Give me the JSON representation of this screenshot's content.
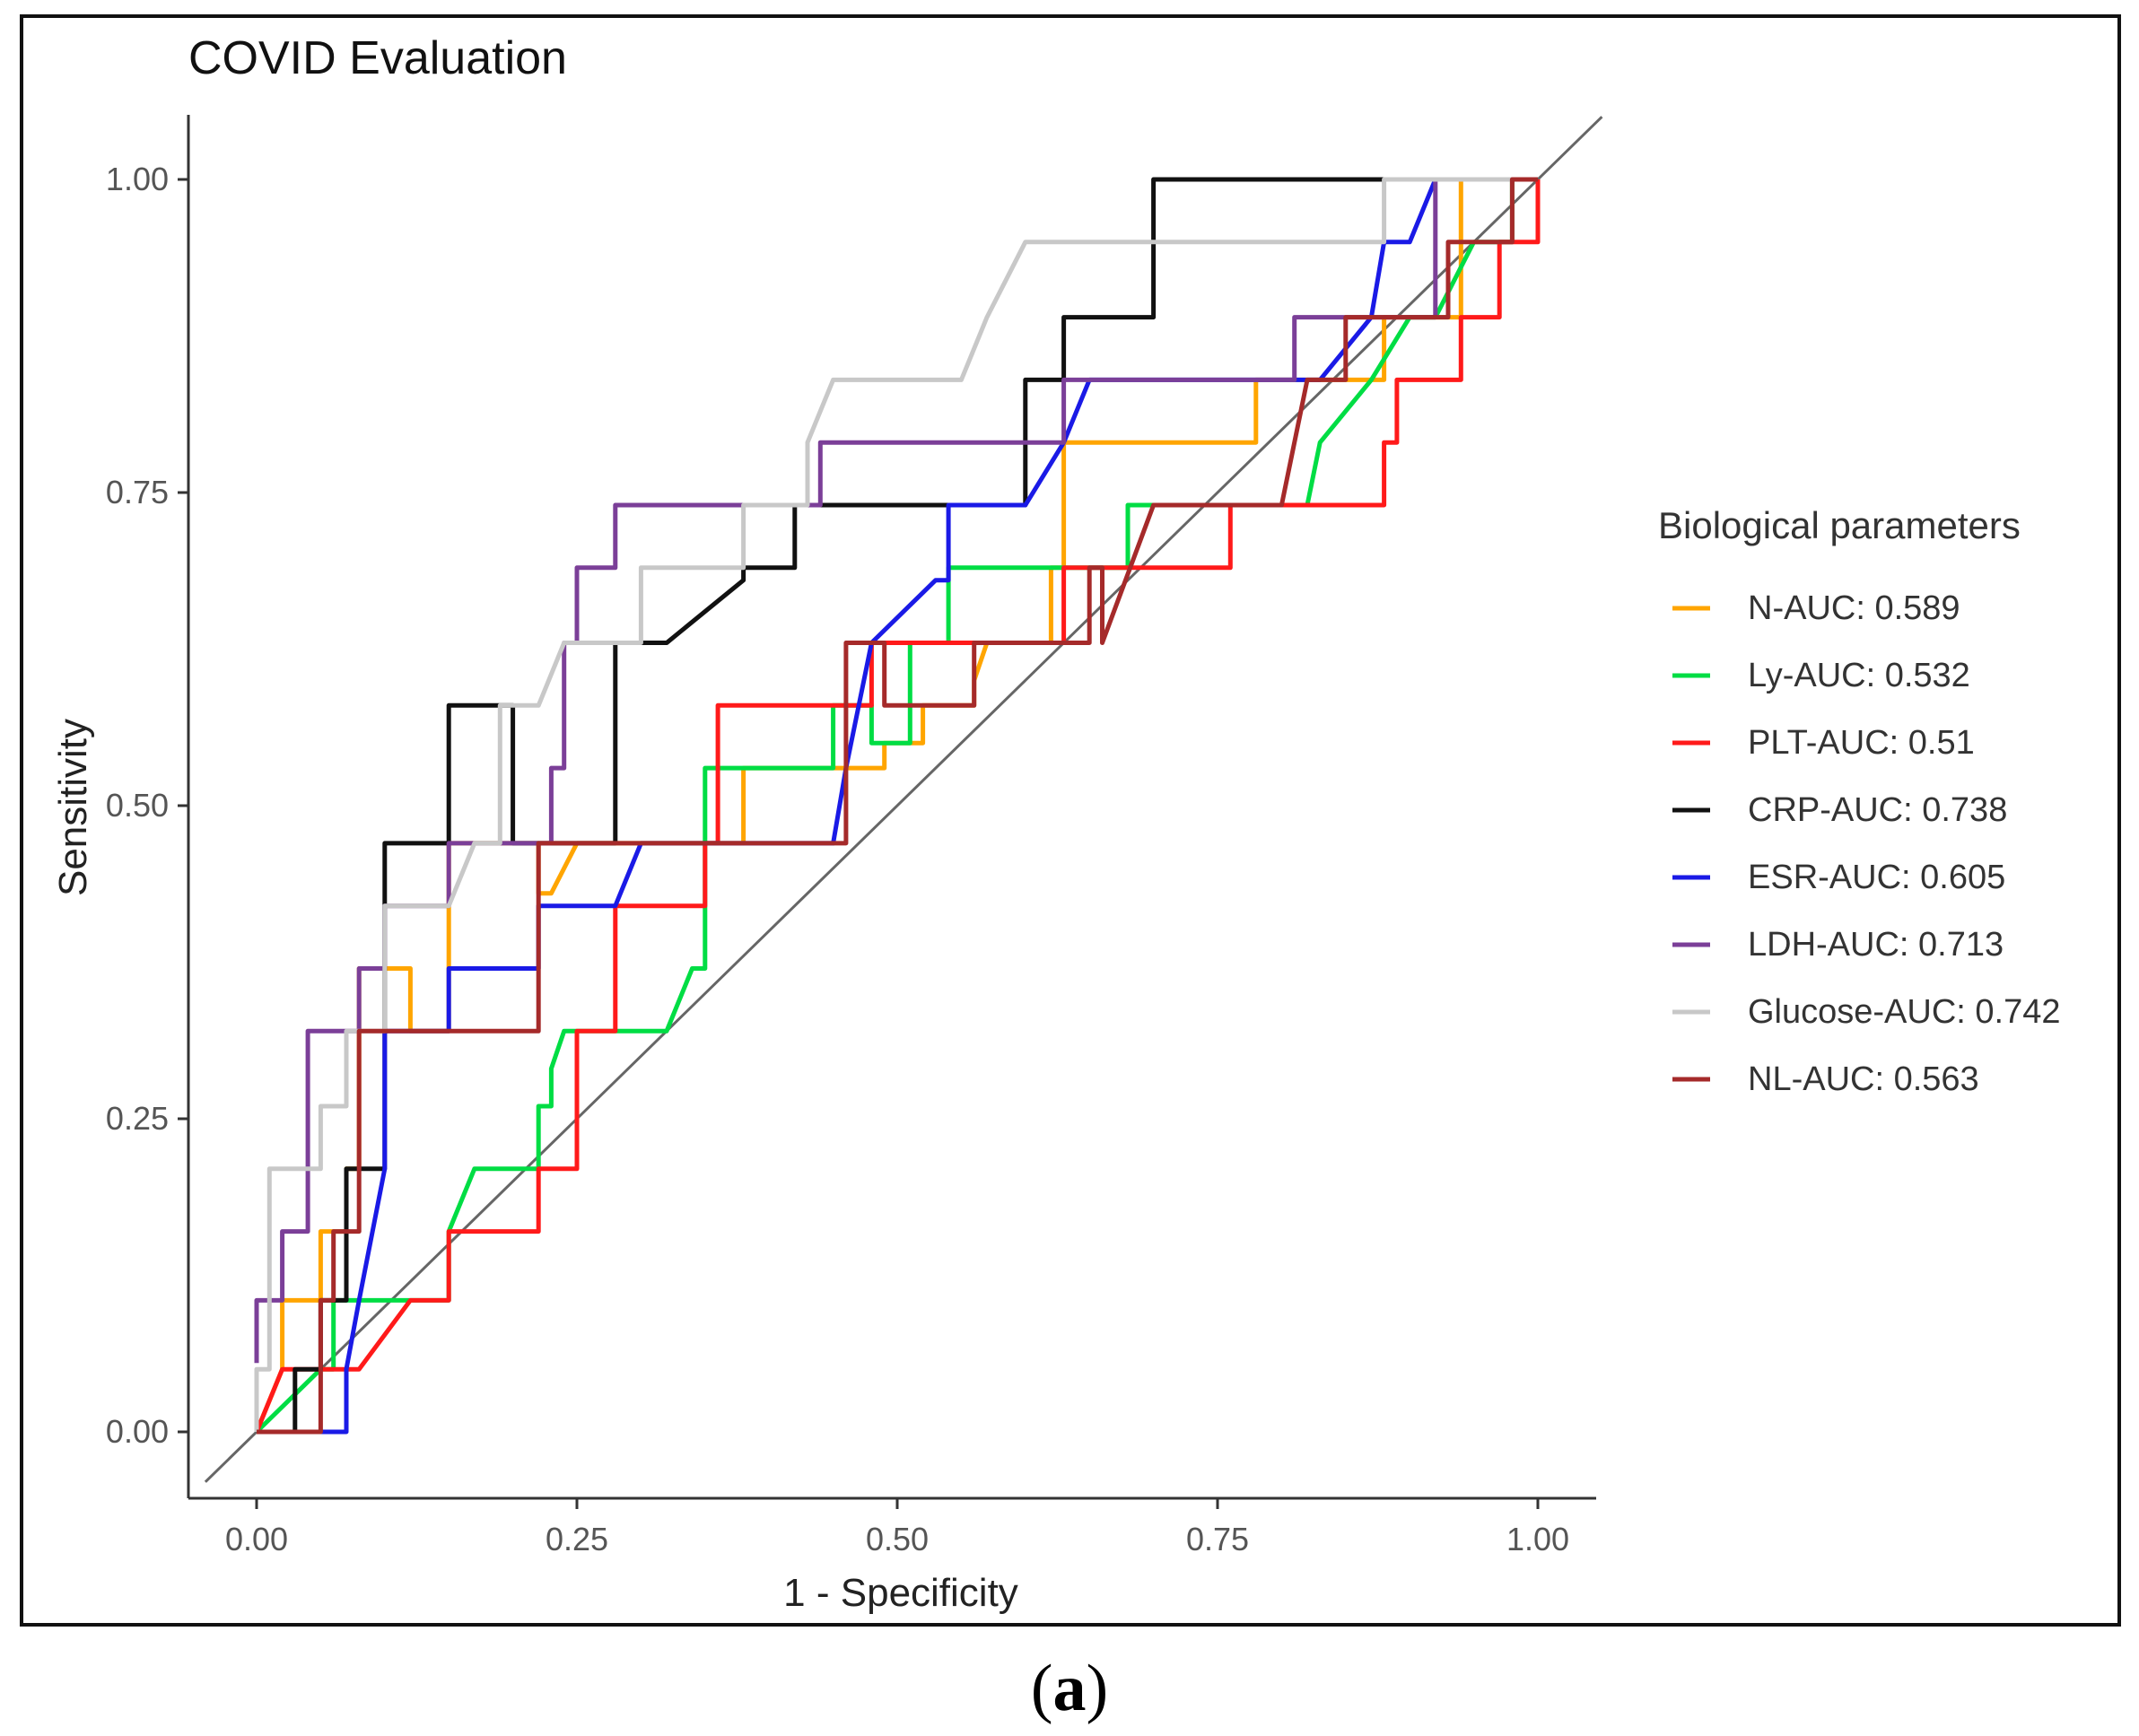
{
  "chart_data": {
    "type": "line",
    "title": "COVID Evaluation",
    "xlabel": "1 - Specificity",
    "ylabel": "Sensitivity",
    "xlim": [
      -0.05,
      1.05
    ],
    "ylim": [
      -0.05,
      1.05
    ],
    "xticks": [
      "0.00",
      "0.25",
      "0.50",
      "0.75",
      "1.00"
    ],
    "yticks": [
      "0.00",
      "0.25",
      "0.50",
      "0.75",
      "1.00"
    ],
    "grid": false,
    "legend_title": "Biological parameters",
    "legend_position": "right",
    "reference_line": {
      "x": [
        -0.04,
        1.05
      ],
      "y": [
        -0.04,
        1.05
      ],
      "color": "#666666"
    },
    "series": [
      {
        "name": "N-AUC: 0.589",
        "color": "#FFA500",
        "x": [
          0,
          0.02,
          0.02,
          0.05,
          0.05,
          0.07,
          0.07,
          0.08,
          0.08,
          0.12,
          0.12,
          0.15,
          0.15,
          0.22,
          0.22,
          0.23,
          0.25,
          0.38,
          0.38,
          0.49,
          0.49,
          0.52,
          0.52,
          0.56,
          0.56,
          0.57,
          0.62,
          0.62,
          0.63,
          0.63,
          0.78,
          0.78,
          0.88,
          0.88,
          0.94,
          0.94,
          1
        ],
        "y": [
          0,
          0.05,
          0.105,
          0.105,
          0.16,
          0.16,
          0.21,
          0.21,
          0.37,
          0.37,
          0.32,
          0.32,
          0.47,
          0.47,
          0.43,
          0.43,
          0.47,
          0.47,
          0.53,
          0.53,
          0.55,
          0.55,
          0.58,
          0.58,
          0.6,
          0.63,
          0.63,
          0.69,
          0.69,
          0.79,
          0.79,
          0.84,
          0.84,
          0.89,
          0.89,
          1,
          1
        ]
      },
      {
        "name": "Ly-AUC: 0.532",
        "color": "#00DD44",
        "x": [
          0,
          0.05,
          0.06,
          0.06,
          0.12,
          0.15,
          0.15,
          0.17,
          0.22,
          0.22,
          0.23,
          0.23,
          0.24,
          0.29,
          0.32,
          0.34,
          0.35,
          0.35,
          0.45,
          0.45,
          0.48,
          0.48,
          0.51,
          0.51,
          0.54,
          0.54,
          0.65,
          0.65,
          0.68,
          0.68,
          0.8,
          0.82,
          0.83,
          0.87,
          0.9,
          0.92,
          0.95,
          0.95,
          0.98,
          0.98,
          1
        ],
        "y": [
          0,
          0.05,
          0.05,
          0.105,
          0.105,
          0.105,
          0.16,
          0.21,
          0.21,
          0.26,
          0.26,
          0.29,
          0.32,
          0.32,
          0.32,
          0.37,
          0.37,
          0.53,
          0.53,
          0.58,
          0.58,
          0.55,
          0.55,
          0.63,
          0.63,
          0.69,
          0.69,
          0.69,
          0.69,
          0.74,
          0.74,
          0.74,
          0.79,
          0.84,
          0.89,
          0.89,
          0.95,
          0.95,
          0.95,
          1,
          1
        ]
      },
      {
        "name": "PLT-AUC: 0.51",
        "color": "#FF1A1A",
        "x": [
          0,
          0.02,
          0.02,
          0.05,
          0.05,
          0.08,
          0.08,
          0.12,
          0.12,
          0.15,
          0.15,
          0.17,
          0.17,
          0.22,
          0.22,
          0.25,
          0.25,
          0.28,
          0.28,
          0.35,
          0.35,
          0.36,
          0.36,
          0.48,
          0.48,
          0.63,
          0.63,
          0.76,
          0.76,
          0.81,
          0.81,
          0.88,
          0.88,
          0.89,
          0.89,
          0.91,
          0.91,
          0.94,
          0.94,
          0.97,
          0.97,
          1,
          1
        ],
        "y": [
          0,
          0.05,
          0.05,
          0.05,
          0.05,
          0.05,
          0.05,
          0.105,
          0.105,
          0.105,
          0.16,
          0.16,
          0.16,
          0.16,
          0.21,
          0.21,
          0.32,
          0.32,
          0.42,
          0.42,
          0.47,
          0.47,
          0.58,
          0.58,
          0.63,
          0.63,
          0.69,
          0.69,
          0.74,
          0.74,
          0.74,
          0.74,
          0.79,
          0.79,
          0.84,
          0.84,
          0.84,
          0.84,
          0.89,
          0.89,
          0.95,
          0.95,
          1
        ]
      },
      {
        "name": "CRP-AUC: 0.738",
        "color": "#111111",
        "x": [
          0,
          0.03,
          0.03,
          0.05,
          0.05,
          0.07,
          0.07,
          0.1,
          0.1,
          0.15,
          0.15,
          0.2,
          0.2,
          0.28,
          0.28,
          0.32,
          0.38,
          0.38,
          0.42,
          0.42,
          0.6,
          0.6,
          0.63,
          0.63,
          0.7,
          0.7,
          0.88,
          0.88,
          1
        ],
        "y": [
          0,
          0,
          0.05,
          0.05,
          0.105,
          0.105,
          0.21,
          0.21,
          0.47,
          0.47,
          0.58,
          0.58,
          0.47,
          0.47,
          0.63,
          0.63,
          0.68,
          0.69,
          0.69,
          0.74,
          0.74,
          0.84,
          0.84,
          0.89,
          0.89,
          1,
          1,
          1,
          1
        ]
      },
      {
        "name": "ESR-AUC: 0.605",
        "color": "#1A1AE6",
        "x": [
          0,
          0.04,
          0.04,
          0.07,
          0.07,
          0.08,
          0.1,
          0.1,
          0.15,
          0.15,
          0.22,
          0.22,
          0.28,
          0.3,
          0.3,
          0.45,
          0.46,
          0.48,
          0.48,
          0.53,
          0.54,
          0.54,
          0.6,
          0.63,
          0.65,
          0.83,
          0.87,
          0.88,
          0.9,
          0.92,
          1
        ],
        "y": [
          0,
          0,
          0,
          0,
          0.05,
          0.105,
          0.21,
          0.32,
          0.32,
          0.37,
          0.37,
          0.42,
          0.42,
          0.47,
          0.47,
          0.47,
          0.53,
          0.63,
          0.63,
          0.68,
          0.68,
          0.74,
          0.74,
          0.79,
          0.84,
          0.84,
          0.89,
          0.95,
          0.95,
          1,
          1
        ]
      },
      {
        "name": "LDH-AUC: 0.713",
        "color": "#7B3F98",
        "x": [
          0,
          0,
          0.02,
          0.02,
          0.04,
          0.04,
          0.08,
          0.08,
          0.1,
          0.1,
          0.15,
          0.15,
          0.18,
          0.18,
          0.23,
          0.23,
          0.24,
          0.24,
          0.25,
          0.25,
          0.28,
          0.28,
          0.35,
          0.35,
          0.44,
          0.44,
          0.63,
          0.63,
          0.65,
          0.65,
          0.81,
          0.81,
          0.92,
          0.92,
          1
        ],
        "y": [
          0.055,
          0.105,
          0.105,
          0.16,
          0.16,
          0.32,
          0.32,
          0.37,
          0.37,
          0.42,
          0.42,
          0.47,
          0.47,
          0.47,
          0.47,
          0.53,
          0.53,
          0.63,
          0.63,
          0.69,
          0.69,
          0.74,
          0.74,
          0.74,
          0.74,
          0.79,
          0.79,
          0.84,
          0.84,
          0.84,
          0.84,
          0.89,
          0.89,
          1,
          1
        ]
      },
      {
        "name": "Glucose-AUC: 0.742",
        "color": "#C8C8C8",
        "x": [
          0,
          0,
          0.01,
          0.01,
          0.05,
          0.05,
          0.07,
          0.07,
          0.1,
          0.1,
          0.15,
          0.17,
          0.19,
          0.19,
          0.22,
          0.24,
          0.24,
          0.3,
          0.3,
          0.38,
          0.38,
          0.43,
          0.43,
          0.45,
          0.55,
          0.57,
          0.57,
          0.6,
          0.6,
          0.88,
          0.88,
          0.89,
          0.89,
          1
        ],
        "y": [
          0,
          0.05,
          0.05,
          0.21,
          0.21,
          0.26,
          0.26,
          0.32,
          0.32,
          0.42,
          0.42,
          0.47,
          0.47,
          0.58,
          0.58,
          0.63,
          0.63,
          0.63,
          0.69,
          0.69,
          0.74,
          0.74,
          0.79,
          0.84,
          0.84,
          0.89,
          0.89,
          0.95,
          0.95,
          0.95,
          1,
          1,
          1,
          1
        ]
      },
      {
        "name": "NL-AUC: 0.563",
        "color": "#A52A2A",
        "x": [
          0,
          0.05,
          0.05,
          0.06,
          0.06,
          0.08,
          0.08,
          0.12,
          0.12,
          0.22,
          0.22,
          0.35,
          0.35,
          0.46,
          0.46,
          0.49,
          0.49,
          0.53,
          0.53,
          0.56,
          0.56,
          0.65,
          0.65,
          0.66,
          0.66,
          0.7,
          0.8,
          0.82,
          0.82,
          0.85,
          0.85,
          0.93,
          0.93,
          0.96,
          0.96,
          0.98,
          0.98,
          1
        ],
        "y": [
          0,
          0,
          0.105,
          0.105,
          0.16,
          0.16,
          0.32,
          0.32,
          0.32,
          0.32,
          0.47,
          0.47,
          0.47,
          0.47,
          0.63,
          0.63,
          0.58,
          0.58,
          0.58,
          0.58,
          0.63,
          0.63,
          0.69,
          0.69,
          0.63,
          0.74,
          0.74,
          0.84,
          0.84,
          0.84,
          0.89,
          0.89,
          0.95,
          0.95,
          0.95,
          0.95,
          1,
          1
        ]
      }
    ]
  },
  "caption": {
    "open": "(",
    "letter": "a",
    "close": ")"
  }
}
